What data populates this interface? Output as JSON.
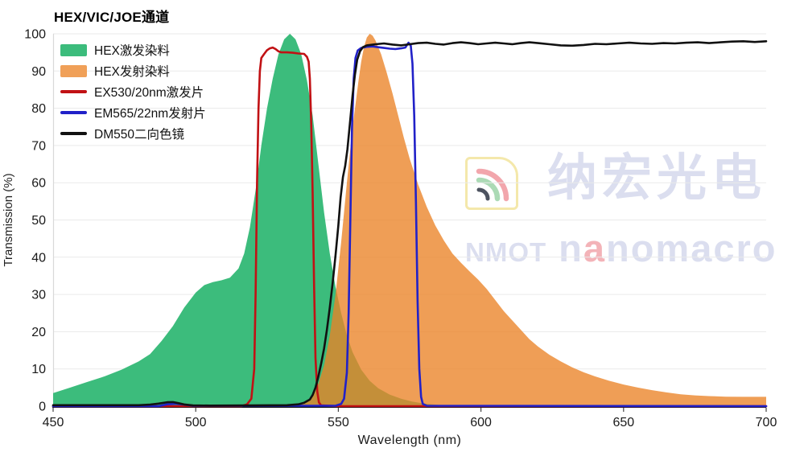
{
  "title": "HEX/VIC/JOE通道",
  "axis": {
    "x_label": "Wavelength (nm)",
    "y_label": "Transmission (%)"
  },
  "colors": {
    "grid": "#eaeaea",
    "plot_left_edge": "#d9d9d9",
    "axis": "#111111",
    "tick_text": "#1a1a1a"
  },
  "legend": {
    "items": [
      {
        "slug": "hex-excitation-dye",
        "label": "HEX激发染料",
        "type": "area",
        "color": "#3cbc7c"
      },
      {
        "slug": "hex-emission-dye",
        "label": "HEX发射染料",
        "type": "area",
        "color": "#f0a058"
      },
      {
        "slug": "ex530-filter",
        "label": "EX530/20nm激发片",
        "type": "line",
        "color": "#c11114"
      },
      {
        "slug": "em565-filter",
        "label": "EM565/22nm发射片",
        "type": "line",
        "color": "#2121c8"
      },
      {
        "slug": "dm550-dichroic",
        "label": "DM550二向色镜",
        "type": "line",
        "color": "#111111"
      }
    ]
  },
  "watermark": {
    "cn": "纳宏光电",
    "latin_bold": "NMOT",
    "brand_head": "n",
    "brand_accent": "a",
    "brand_tail": "nomacro",
    "text_color": "#dbdeef",
    "accent_color": "#f3b3b8",
    "logo": {
      "border": "#f4e8ab",
      "arc_outer": "#f2a6ac",
      "arc_mid": "#abdab5",
      "arc_inner": "#4d5360"
    }
  },
  "chart_data": {
    "type": "area",
    "title": "HEX/VIC/JOE通道",
    "xlabel": "Wavelength (nm)",
    "ylabel": "Transmission (%)",
    "xlim": [
      450,
      700
    ],
    "ylim": [
      0,
      100
    ],
    "x_ticks": [
      450,
      500,
      550,
      600,
      650,
      700
    ],
    "y_ticks": [
      0,
      10,
      20,
      30,
      40,
      50,
      60,
      70,
      80,
      90,
      100
    ],
    "grid": true,
    "legend_position": "top-left",
    "series": [
      {
        "name": "HEX激发染料",
        "slug": "hex-excitation-dye",
        "style": "area",
        "color": "#3cbc7c",
        "fill_opacity": 1,
        "points": [
          [
            450,
            3.5
          ],
          [
            456,
            5
          ],
          [
            462,
            6.5
          ],
          [
            468,
            8
          ],
          [
            474,
            9.8
          ],
          [
            480,
            12
          ],
          [
            484,
            14
          ],
          [
            488,
            17.5
          ],
          [
            492,
            21.5
          ],
          [
            496,
            26.5
          ],
          [
            500,
            30.5
          ],
          [
            503,
            32.5
          ],
          [
            506,
            33.3
          ],
          [
            509,
            33.8
          ],
          [
            512,
            34.5
          ],
          [
            515,
            37
          ],
          [
            517,
            41
          ],
          [
            519,
            48
          ],
          [
            521,
            58
          ],
          [
            523,
            70
          ],
          [
            525,
            80
          ],
          [
            527,
            88
          ],
          [
            529,
            94.5
          ],
          [
            531,
            98.5
          ],
          [
            533,
            100
          ],
          [
            535,
            98.5
          ],
          [
            537,
            94.5
          ],
          [
            539,
            87.5
          ],
          [
            541,
            78
          ],
          [
            543,
            65
          ],
          [
            545,
            52
          ],
          [
            547,
            41
          ],
          [
            549,
            32
          ],
          [
            551,
            25
          ],
          [
            553,
            19
          ],
          [
            555,
            14.5
          ],
          [
            558,
            9.8
          ],
          [
            561,
            6.8
          ],
          [
            564,
            4.8
          ],
          [
            568,
            3.1
          ],
          [
            572,
            2
          ],
          [
            576,
            1.2
          ],
          [
            580,
            0.7
          ],
          [
            585,
            0.35
          ],
          [
            592,
            0.1
          ],
          [
            600,
            0
          ]
        ]
      },
      {
        "name": "HEX发射染料",
        "slug": "hex-emission-dye",
        "style": "area",
        "color": "#eb8326",
        "fill_opacity": 0.78,
        "points": [
          [
            536,
            0.2
          ],
          [
            539,
            1
          ],
          [
            541,
            2.8
          ],
          [
            543,
            6
          ],
          [
            545,
            11
          ],
          [
            547,
            19
          ],
          [
            549,
            30
          ],
          [
            551,
            44
          ],
          [
            553,
            60
          ],
          [
            555,
            75
          ],
          [
            556,
            81
          ],
          [
            557,
            87
          ],
          [
            558,
            92.5
          ],
          [
            559,
            96.5
          ],
          [
            560,
            99
          ],
          [
            561,
            100
          ],
          [
            562,
            99.5
          ],
          [
            563,
            98.2
          ],
          [
            565,
            94.5
          ],
          [
            567,
            89.5
          ],
          [
            569,
            84
          ],
          [
            571,
            78
          ],
          [
            573,
            72
          ],
          [
            575,
            66.5
          ],
          [
            578,
            59.5
          ],
          [
            581,
            53.5
          ],
          [
            584,
            48.5
          ],
          [
            587,
            44.5
          ],
          [
            590,
            41
          ],
          [
            593,
            38.5
          ],
          [
            596,
            36.2
          ],
          [
            599,
            34
          ],
          [
            602,
            31.5
          ],
          [
            605,
            28.5
          ],
          [
            608,
            25.5
          ],
          [
            611,
            23
          ],
          [
            614,
            20.5
          ],
          [
            617,
            18
          ],
          [
            620,
            16
          ],
          [
            624,
            13.8
          ],
          [
            628,
            12
          ],
          [
            632,
            10.4
          ],
          [
            636,
            9.1
          ],
          [
            640,
            8
          ],
          [
            645,
            6.8
          ],
          [
            650,
            5.8
          ],
          [
            655,
            5
          ],
          [
            660,
            4.3
          ],
          [
            665,
            3.7
          ],
          [
            670,
            3.2
          ],
          [
            675,
            2.9
          ],
          [
            680,
            2.7
          ],
          [
            686,
            2.55
          ],
          [
            692,
            2.5
          ],
          [
            700,
            2.5
          ]
        ]
      },
      {
        "name": "EX530/20nm激发片",
        "slug": "ex530-filter",
        "style": "line",
        "color": "#c11114",
        "stroke_width": 2.6,
        "points": [
          [
            450,
            0
          ],
          [
            516,
            0
          ],
          [
            518,
            0.5
          ],
          [
            519.5,
            2
          ],
          [
            520.5,
            10
          ],
          [
            521,
            30
          ],
          [
            521.5,
            60
          ],
          [
            522,
            80
          ],
          [
            522.5,
            90
          ],
          [
            523,
            93.5
          ],
          [
            524,
            94.6
          ],
          [
            525,
            95.6
          ],
          [
            526,
            96.1
          ],
          [
            527,
            96.3
          ],
          [
            528,
            95.9
          ],
          [
            529,
            95.3
          ],
          [
            530,
            95
          ],
          [
            532,
            95
          ],
          [
            534,
            94.9
          ],
          [
            536,
            94.7
          ],
          [
            538,
            94.6
          ],
          [
            539,
            93.8
          ],
          [
            539.6,
            92.5
          ],
          [
            540,
            88
          ],
          [
            540.5,
            76
          ],
          [
            541,
            57
          ],
          [
            541.5,
            32
          ],
          [
            542,
            13
          ],
          [
            542.6,
            4
          ],
          [
            543.2,
            1
          ],
          [
            544,
            0.2
          ],
          [
            550,
            0
          ],
          [
            700,
            0
          ]
        ]
      },
      {
        "name": "EM565/22nm发射片",
        "slug": "em565-filter",
        "style": "line",
        "color": "#2121c8",
        "stroke_width": 2.6,
        "points": [
          [
            450,
            0
          ],
          [
            487,
            0
          ],
          [
            490,
            0.5
          ],
          [
            493,
            0.65
          ],
          [
            496,
            0.4
          ],
          [
            499,
            0.1
          ],
          [
            549,
            0.1
          ],
          [
            551,
            0.6
          ],
          [
            552,
            2
          ],
          [
            553,
            9
          ],
          [
            553.6,
            25
          ],
          [
            554.2,
            50
          ],
          [
            554.8,
            75
          ],
          [
            555.4,
            88
          ],
          [
            556,
            93.5
          ],
          [
            556.8,
            95.5
          ],
          [
            558,
            96.2
          ],
          [
            560,
            96.5
          ],
          [
            562,
            96.6
          ],
          [
            564,
            96.4
          ],
          [
            566,
            96.2
          ],
          [
            568,
            96
          ],
          [
            570,
            95.9
          ],
          [
            572,
            96.1
          ],
          [
            573.5,
            96.3
          ],
          [
            574.6,
            97.6
          ],
          [
            575.4,
            96.8
          ],
          [
            576,
            92
          ],
          [
            576.6,
            78
          ],
          [
            577.2,
            55
          ],
          [
            577.8,
            28
          ],
          [
            578.4,
            10
          ],
          [
            579,
            2.5
          ],
          [
            579.6,
            0.6
          ],
          [
            581,
            0.1
          ],
          [
            700,
            0
          ]
        ]
      },
      {
        "name": "DM550二向色镜",
        "slug": "dm550-dichroic",
        "style": "line",
        "color": "#111111",
        "stroke_width": 2.6,
        "points": [
          [
            450,
            0.25
          ],
          [
            480,
            0.25
          ],
          [
            484,
            0.4
          ],
          [
            487,
            0.7
          ],
          [
            490,
            1.05
          ],
          [
            492,
            1.1
          ],
          [
            494,
            0.8
          ],
          [
            496,
            0.45
          ],
          [
            499,
            0.2
          ],
          [
            505,
            0.15
          ],
          [
            520,
            0.2
          ],
          [
            532,
            0.25
          ],
          [
            536,
            0.5
          ],
          [
            538,
            0.9
          ],
          [
            540,
            1.8
          ],
          [
            541,
            3
          ],
          [
            542,
            5
          ],
          [
            543,
            8
          ],
          [
            544,
            11.5
          ],
          [
            545,
            15.5
          ],
          [
            546,
            20.5
          ],
          [
            547,
            26.5
          ],
          [
            548,
            33
          ],
          [
            549,
            40.5
          ],
          [
            550,
            48.5
          ],
          [
            550.8,
            56
          ],
          [
            551.6,
            61.5
          ],
          [
            552.4,
            64.5
          ],
          [
            553.2,
            69
          ],
          [
            554,
            75.5
          ],
          [
            555,
            83.5
          ],
          [
            555.8,
            89
          ],
          [
            556.6,
            93
          ],
          [
            557.6,
            95.3
          ],
          [
            558.6,
            96.4
          ],
          [
            560,
            96.9
          ],
          [
            563,
            97.2
          ],
          [
            566,
            97.4
          ],
          [
            569,
            97.1
          ],
          [
            572,
            96.9
          ],
          [
            575,
            97.2
          ],
          [
            578,
            97.5
          ],
          [
            581,
            97.6
          ],
          [
            584,
            97.3
          ],
          [
            587,
            97.1
          ],
          [
            590,
            97.5
          ],
          [
            593,
            97.7
          ],
          [
            596,
            97.5
          ],
          [
            599,
            97.2
          ],
          [
            602,
            97.4
          ],
          [
            605,
            97.6
          ],
          [
            608,
            97.4
          ],
          [
            611,
            97.2
          ],
          [
            614,
            97.5
          ],
          [
            617,
            97.7
          ],
          [
            620,
            97.5
          ],
          [
            624,
            97.2
          ],
          [
            628,
            96.9
          ],
          [
            632,
            96.8
          ],
          [
            636,
            97
          ],
          [
            640,
            97.3
          ],
          [
            644,
            97.2
          ],
          [
            648,
            97.4
          ],
          [
            652,
            97.6
          ],
          [
            656,
            97.4
          ],
          [
            660,
            97.3
          ],
          [
            664,
            97.5
          ],
          [
            668,
            97.4
          ],
          [
            672,
            97.6
          ],
          [
            676,
            97.7
          ],
          [
            680,
            97.5
          ],
          [
            684,
            97.7
          ],
          [
            688,
            97.9
          ],
          [
            692,
            98
          ],
          [
            696,
            97.8
          ],
          [
            700,
            98
          ]
        ]
      }
    ]
  }
}
